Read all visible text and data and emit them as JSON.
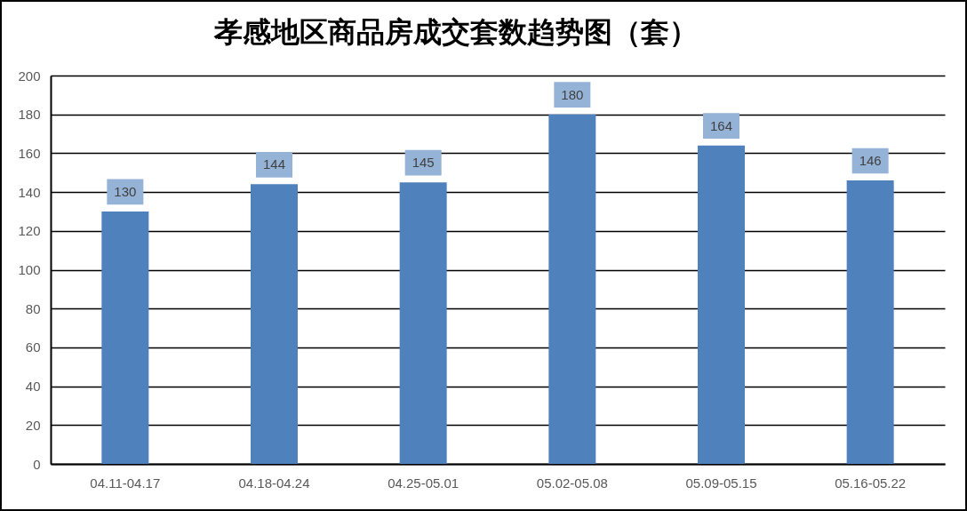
{
  "chart_data": {
    "type": "bar",
    "title": "孝感地区商品房成交套数趋势图（套）",
    "categories": [
      "04.11-04.17",
      "04.18-04.24",
      "04.25-05.01",
      "05.02-05.08",
      "05.09-05.15",
      "05.16-05.22"
    ],
    "values": [
      130,
      144,
      145,
      180,
      164,
      146
    ],
    "color": "#4f81bd",
    "ylim": [
      0,
      200
    ],
    "yticks": [
      0,
      20,
      40,
      60,
      80,
      100,
      120,
      140,
      160,
      180,
      200
    ],
    "grid": "y",
    "data_labels": true
  }
}
